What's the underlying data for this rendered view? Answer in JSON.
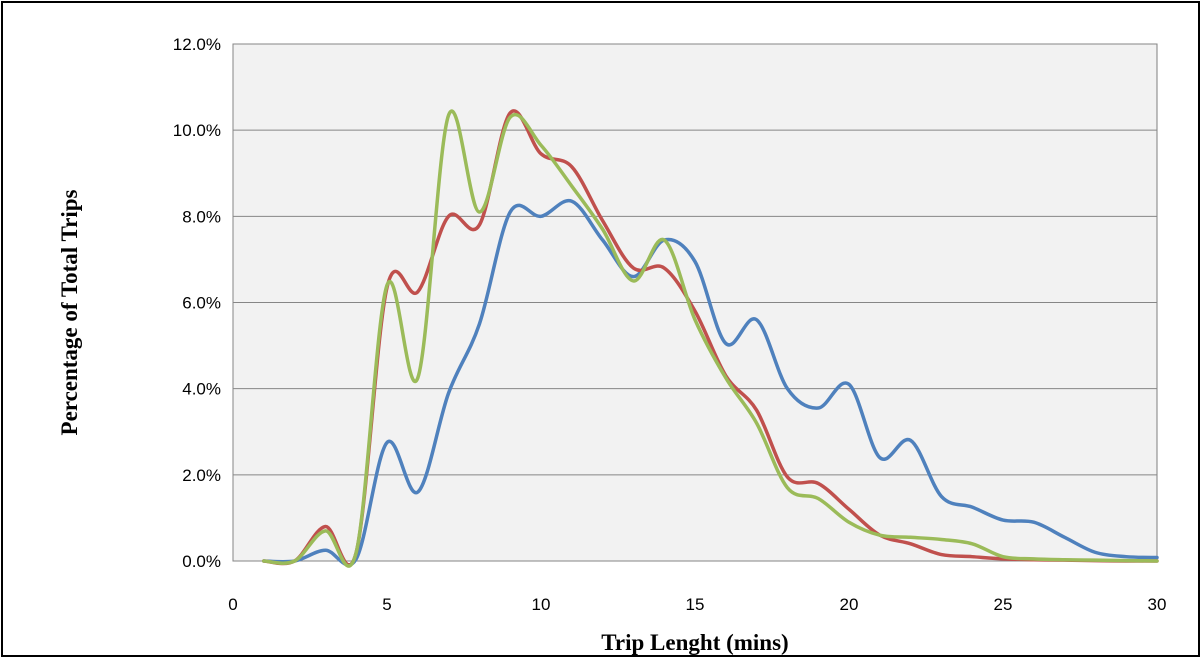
{
  "chart_data": {
    "type": "line",
    "title": "",
    "xlabel": "Trip Lenght (mins)",
    "ylabel": "Percentage of Total Trips",
    "xlim": [
      0,
      30
    ],
    "ylim": [
      0,
      12
    ],
    "x_ticks": [
      0,
      5,
      10,
      15,
      20,
      25,
      30
    ],
    "x_tick_labels": [
      "0",
      "5",
      "10",
      "15",
      "20",
      "25",
      "30"
    ],
    "y_ticks": [
      0,
      2,
      4,
      6,
      8,
      10,
      12
    ],
    "y_tick_labels": [
      "0.0%",
      "2.0%",
      "4.0%",
      "6.0%",
      "8.0%",
      "10.0%",
      "12.0%"
    ],
    "grid": "horizontal",
    "plot_background": "#f2f2f2",
    "legend": "none",
    "x": [
      1,
      2,
      3,
      4,
      5,
      6,
      7,
      8,
      9,
      10,
      11,
      12,
      13,
      14,
      15,
      16,
      17,
      18,
      19,
      20,
      21,
      22,
      23,
      24,
      25,
      26,
      27,
      28,
      29,
      30
    ],
    "series": [
      {
        "color": "#4f81bd",
        "values": [
          0.0,
          0.0,
          0.25,
          0.05,
          2.75,
          1.6,
          3.9,
          5.5,
          8.1,
          8.0,
          8.35,
          7.45,
          6.6,
          7.45,
          6.95,
          5.05,
          5.6,
          4.0,
          3.55,
          4.1,
          2.4,
          2.8,
          1.5,
          1.25,
          0.95,
          0.9,
          0.55,
          0.2,
          0.1,
          0.08
        ]
      },
      {
        "color": "#c0504d",
        "values": [
          0.0,
          0.0,
          0.8,
          0.2,
          6.35,
          6.25,
          8.0,
          7.8,
          10.4,
          9.45,
          9.15,
          7.9,
          6.8,
          6.8,
          5.8,
          4.3,
          3.5,
          1.95,
          1.8,
          1.2,
          0.6,
          0.4,
          0.15,
          0.1,
          0.05,
          0.03,
          0.02,
          0.01,
          0.0,
          0.0
        ]
      },
      {
        "color": "#9bbb59",
        "values": [
          0.0,
          0.0,
          0.7,
          0.2,
          6.4,
          4.25,
          10.35,
          8.1,
          10.3,
          9.65,
          8.7,
          7.7,
          6.5,
          7.45,
          5.6,
          4.25,
          3.2,
          1.7,
          1.45,
          0.9,
          0.6,
          0.55,
          0.5,
          0.4,
          0.1,
          0.05,
          0.03,
          0.02,
          0.01,
          0.0
        ]
      }
    ]
  }
}
